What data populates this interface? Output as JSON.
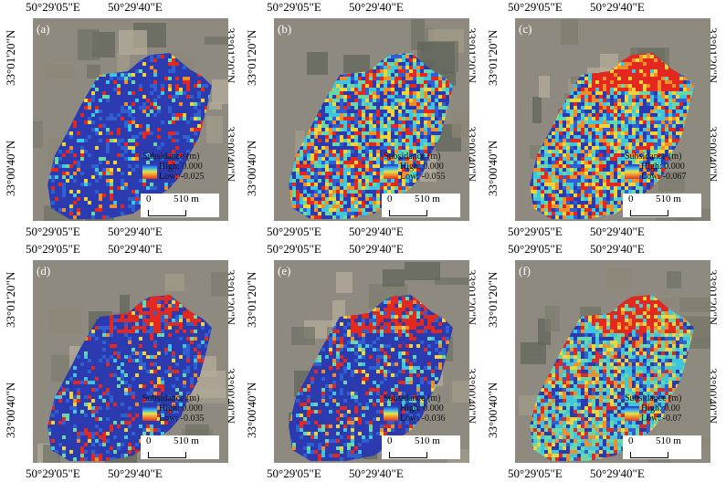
{
  "lon_labels": [
    "50°29'05\"E",
    "50°29'40\"E"
  ],
  "lat_labels": [
    "33°01'20\"N",
    "33°00'40\"N"
  ],
  "legend_title": "Subsidance (m)",
  "scale_zero": "0",
  "scale_text": "510 m",
  "panels": [
    {
      "label": "(a)",
      "high": "High: 0.000",
      "low": "Low: -0.025",
      "red_fraction": 0.06,
      "yellow_fraction": 0.05,
      "cyan_fraction": 0.06
    },
    {
      "label": "(b)",
      "high": "High: 0.000",
      "low": "Low: -0.055",
      "red_fraction": 0.12,
      "yellow_fraction": 0.22,
      "cyan_fraction": 0.28
    },
    {
      "label": "(c)",
      "high": "High: 0.000",
      "low": "Low: -0.067",
      "red_fraction": 0.14,
      "yellow_fraction": 0.26,
      "cyan_fraction": 0.3
    },
    {
      "label": "(d)",
      "high": "High: 0.000",
      "low": "Low: -0.035",
      "red_fraction": 0.1,
      "yellow_fraction": 0.04,
      "cyan_fraction": 0.06
    },
    {
      "label": "(e)",
      "high": "High: 0.000",
      "low": "Low: -0.036",
      "red_fraction": 0.1,
      "yellow_fraction": 0.06,
      "cyan_fraction": 0.1
    },
    {
      "label": "(f)",
      "high": "High: 0.00",
      "low": "Low: -0.07",
      "red_fraction": 0.12,
      "yellow_fraction": 0.22,
      "cyan_fraction": 0.4
    }
  ]
}
